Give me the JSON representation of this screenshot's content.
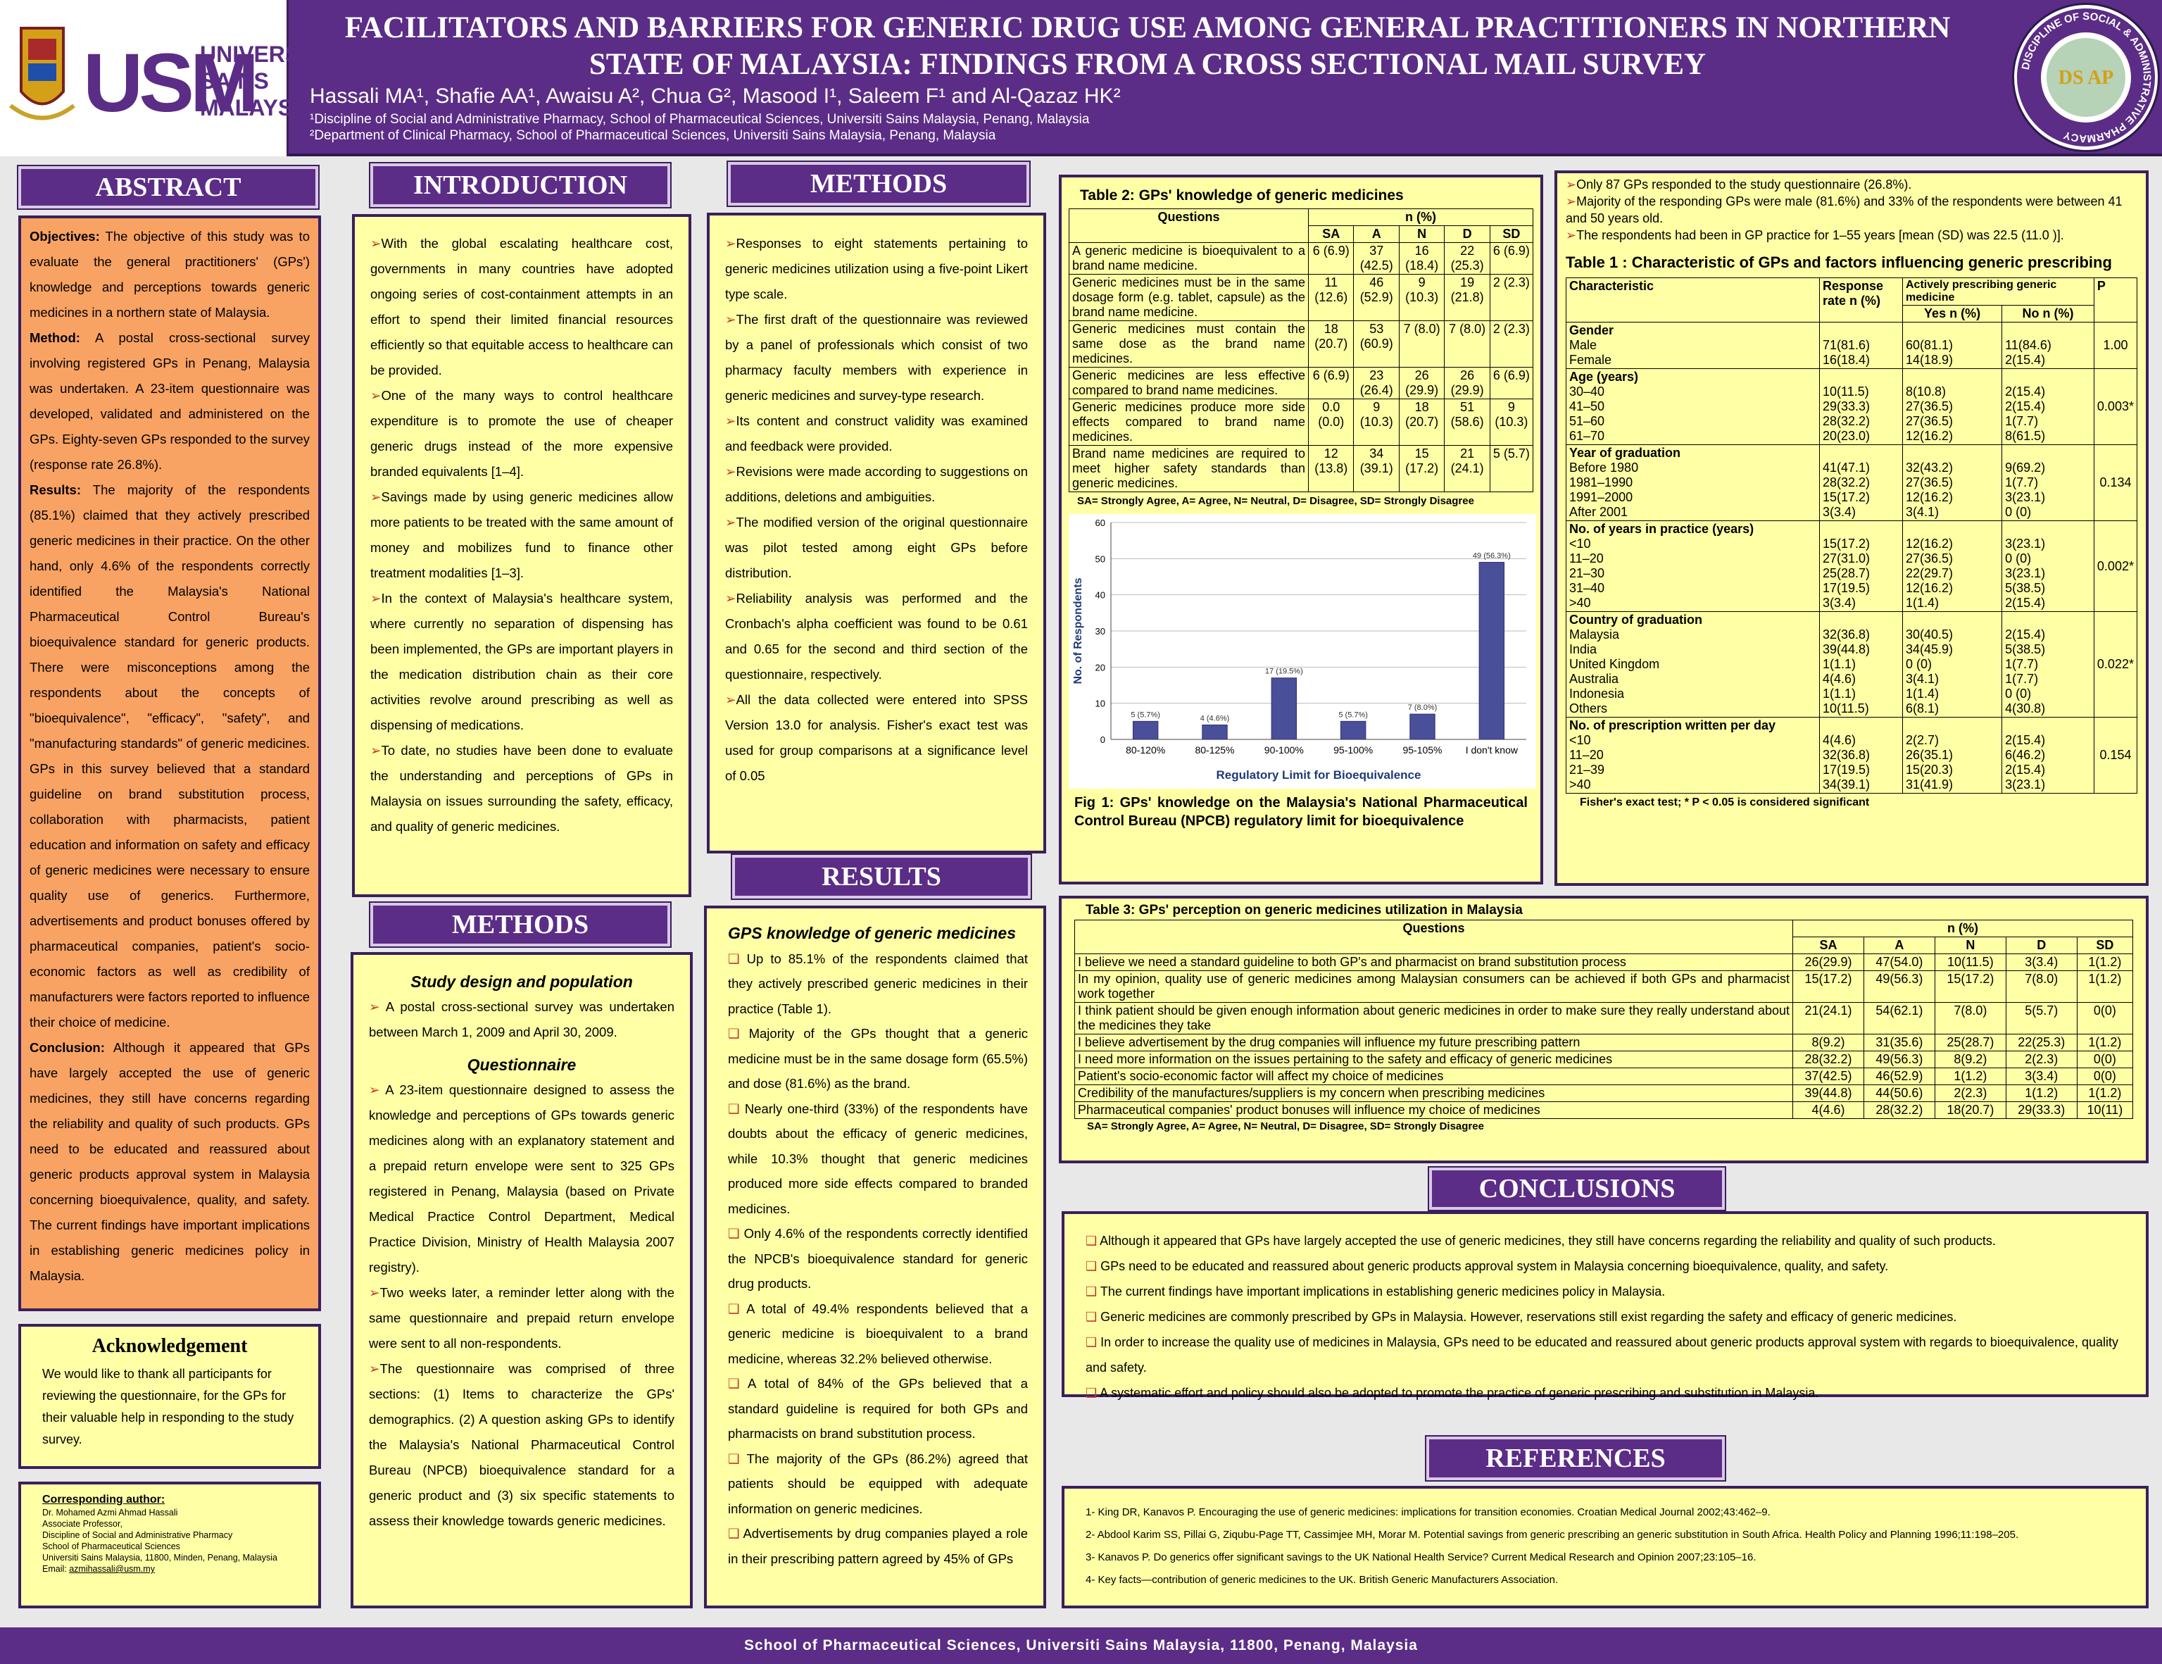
{
  "header": {
    "title": "FACILITATORS AND BARRIERS FOR GENERIC DRUG USE AMONG GENERAL PRACTITIONERS IN NORTHERN STATE OF MALAYSIA: FINDINGS FROM A CROSS SECTIONAL MAIL SURVEY",
    "authors": "Hassali MA¹, Shafie AA¹, Awaisu A², Chua G², Masood I¹, Saleem F¹ and Al-Qazaz HK²",
    "affil1": "¹Discipline of Social and Administrative Pharmacy, School of Pharmaceutical Sciences, Universiti Sains Malaysia, Penang, Malaysia",
    "affil2": "²Department of Clinical Pharmacy, School of Pharmaceutical Sciences, Universiti Sains Malaysia, Penang, Malaysia",
    "logo_text": "USM",
    "logo_name_1": "UNIVERSITI",
    "logo_name_2": "SAINS",
    "logo_name_3": "MALAYSIA",
    "seal_text": "DISCIPLINE OF SOCIAL & ADMINISTRATIVE PHARMACY",
    "seal_letters": "DS AP"
  },
  "abstract": {
    "heading": "ABSTRACT",
    "objectives_label": "Objectives:",
    "objectives": " The objective of this study was to evaluate the general practitioners' (GPs') knowledge and perceptions towards generic medicines in a northern state of Malaysia.",
    "method_label": "Method:",
    "method": " A postal cross-sectional survey involving registered GPs in Penang, Malaysia was undertaken. A 23-item questionnaire was developed, validated and administered on the GPs. Eighty-seven GPs responded to the survey (response rate 26.8%).",
    "results_label": "Results:",
    "results": " The majority of the respondents (85.1%) claimed that they actively prescribed generic medicines in their practice. On the other hand, only 4.6% of the respondents correctly identified the Malaysia's National Pharmaceutical Control Bureau's bioequivalence standard for generic products. There were misconceptions among the respondents about the concepts of \"bioequivalence\", \"efficacy\", \"safety\", and \"manufacturing standards\" of generic medicines. GPs in this survey believed that a standard guideline on brand substitution process, collaboration with pharmacists, patient education and information on safety and efficacy of generic medicines were necessary to ensure quality use of generics. Furthermore, advertisements and product bonuses offered by pharmaceutical companies, patient's socio-economic factors as well as credibility of manufacturers were factors reported to influence their choice of medicine.",
    "conclusion_label": "Conclusion:",
    "conclusion": " Although it appeared that GPs have largely accepted the use of generic medicines, they still have concerns regarding the reliability and quality of such products. GPs need to be educated and reassured about generic products approval system in Malaysia concerning bioequivalence, quality, and safety. The current findings have important implications in establishing generic medicines policy in Malaysia."
  },
  "acknowledgement": {
    "heading": "Acknowledgement",
    "text": "We would like to thank all participants for reviewing the questionnaire, for the GPs for their valuable help in responding to the study survey."
  },
  "corresponding": {
    "heading": "Corresponding author:",
    "lines": [
      "Dr. Mohamed Azmi Ahmad Hassali",
      "Associate Professor,",
      "Discipline of Social and Administrative Pharmacy",
      "School of Pharmaceutical Sciences",
      "Universiti Sains Malaysia, 11800, Minden, Penang, Malaysia"
    ],
    "email_label": "Email: ",
    "email": "azmihassali@usm.my"
  },
  "introduction": {
    "heading": "INTRODUCTION",
    "items": [
      "With the global escalating healthcare cost, governments in many countries have adopted ongoing series of cost-containment attempts in an effort to spend their limited financial resources efficiently so that equitable access to healthcare can be provided.",
      "One of the many ways to control healthcare expenditure is to promote the use of cheaper generic drugs instead of the more expensive branded equivalents [1–4].",
      "Savings made by using generic medicines allow more patients to be treated with the same amount of money and mobilizes fund to finance other treatment modalities [1–3].",
      "In the context of Malaysia's healthcare system, where currently no separation of dispensing has been implemented, the GPs are important players in the medication distribution chain as their core activities revolve around prescribing as well as dispensing of medications.",
      "To date, no studies have been done to evaluate the understanding and perceptions of GPs in Malaysia on issues surrounding the safety, efficacy, and quality of generic medicines."
    ]
  },
  "methods1": {
    "heading": "METHODS",
    "sub1": "Study design and population",
    "item1": "A postal cross-sectional survey was undertaken between March 1, 2009 and April 30, 2009.",
    "sub2": "Questionnaire",
    "items2": [
      "A 23-item questionnaire designed to assess the knowledge and perceptions of GPs towards generic medicines along with an explanatory statement and a prepaid return envelope were sent to 325 GPs registered in Penang, Malaysia (based on Private Medical Practice Control Department, Medical Practice Division, Ministry of Health Malaysia 2007 registry).",
      "Two weeks later, a reminder letter along with the same questionnaire and prepaid return envelope were sent to all non-respondents.",
      "The questionnaire was comprised of three sections: (1) Items to characterize the GPs' demographics. (2) A question asking GPs to identify the Malaysia's National Pharmaceutical Control Bureau (NPCB) bioequivalence standard for a generic product and (3) six specific statements to assess their knowledge towards generic medicines."
    ]
  },
  "methods2": {
    "heading": "METHODS",
    "items": [
      "Responses to eight statements pertaining to generic medicines utilization using a five-point Likert type scale.",
      "The first draft of the questionnaire was reviewed by a panel of professionals which consist of two pharmacy faculty members with experience in generic medicines and survey-type research.",
      "Its content and construct validity was examined and feedback were provided.",
      "Revisions were made according to suggestions on additions, deletions and ambiguities.",
      "The modified version of the original questionnaire was pilot tested among eight GPs before distribution.",
      "Reliability analysis was performed and the Cronbach's alpha coefficient was found to be 0.61 and 0.65 for the second and third section of the questionnaire, respectively.",
      "All the data collected were entered into SPSS Version 13.0 for analysis. Fisher's exact test was used for group comparisons at a significance level of 0.05"
    ]
  },
  "results": {
    "heading": "RESULTS",
    "sub": "GPS knowledge of generic medicines",
    "items": [
      "Up to 85.1% of the respondents claimed that they actively prescribed generic medicines in their practice (Table 1).",
      "Majority of the GPs thought that a generic medicine must be in the same dosage form (65.5%) and dose (81.6%) as the brand.",
      "Nearly one-third (33%) of the respondents have doubts about the efficacy of generic medicines, while 10.3% thought that generic medicines produced more side effects compared to branded medicines.",
      "Only 4.6% of the respondents correctly identified the NPCB's bioequivalence standard for generic drug products.",
      " A total of 49.4% respondents believed that a generic medicine is bioequivalent to a brand medicine, whereas 32.2% believed otherwise.",
      "A total of 84% of the GPs believed that a standard guideline is required for both GPs and pharmacists on brand substitution process.",
      "The majority of the GPs (86.2%) agreed that patients should be equipped with adequate information on generic medicines.",
      "Advertisements by drug companies played a role in their prescribing pattern agreed by 45% of GPs"
    ]
  },
  "table2": {
    "title": "Table 2: GPs' knowledge of generic medicines",
    "h_questions": "Questions",
    "h_n": "n (%)",
    "cols": [
      "SA",
      "A",
      "N",
      "D",
      "SD"
    ],
    "rows": [
      {
        "q": "A generic medicine is bioequivalent to a brand name medicine.",
        "v": [
          "6 (6.9)",
          "37 (42.5)",
          "16 (18.4)",
          "22 (25.3)",
          "6 (6.9)"
        ]
      },
      {
        "q": "Generic medicines must be in the same dosage form (e.g. tablet, capsule) as the brand name medicine.",
        "v": [
          "11 (12.6)",
          "46 (52.9)",
          "9 (10.3)",
          "19 (21.8)",
          "2 (2.3)"
        ]
      },
      {
        "q": "Generic medicines must contain the same dose as the brand name medicines.",
        "v": [
          "18 (20.7)",
          "53 (60.9)",
          "7 (8.0)",
          "7 (8.0)",
          "2 (2.3)"
        ]
      },
      {
        "q": "Generic medicines are less effective compared to brand name medicines.",
        "v": [
          "6 (6.9)",
          "23 (26.4)",
          "26 (29.9)",
          "26 (29.9)",
          "6 (6.9)"
        ]
      },
      {
        "q": "Generic medicines produce more side effects compared to brand name medicines.",
        "v": [
          "0.0 (0.0)",
          "9 (10.3)",
          "18 (20.7)",
          "51 (58.6)",
          "9 (10.3)"
        ]
      },
      {
        "q": "Brand name medicines are required to meet higher safety standards than generic medicines.",
        "v": [
          "12 (13.8)",
          "34 (39.1)",
          "15 (17.2)",
          "21 (24.1)",
          "5 (5.7)"
        ]
      }
    ],
    "note": "SA= Strongly Agree, A= Agree, N= Neutral, D= Disagree, SD= Strongly Disagree"
  },
  "chart_data": {
    "type": "bar",
    "categories": [
      "80-120%",
      "80-125%",
      "90-100%",
      "95-100%",
      "95-105%",
      "I don't know"
    ],
    "values": [
      5,
      4,
      17,
      5,
      7,
      49
    ],
    "data_labels": [
      "5 (5.7%)",
      "4 (4.6%)",
      "17 (19.5%)",
      "5 (5.7%)",
      "7 (8.0%)",
      "49 (56.3%)"
    ],
    "xlabel": "Regulatory Limit for Bioequivalence",
    "ylabel": "No. of Respondents",
    "ylim": [
      0,
      60
    ],
    "yticks": [
      "0",
      "10",
      "20",
      "30",
      "40",
      "50",
      "60"
    ],
    "grid": true,
    "color": "#4a4f9a",
    "caption": "Fig 1: GPs' knowledge on the Malaysia's National Pharmaceutical Control Bureau (NPCB) regulatory limit for bioequivalence"
  },
  "topright": {
    "items": [
      "Only 87 GPs responded to the study questionnaire (26.8%).",
      "Majority of the responding GPs were male (81.6%) and 33% of the respondents were between 41 and 50 years old.",
      "The respondents had been in GP practice for 1–55 years [mean (SD)  was 22.5 (11.0 )]."
    ]
  },
  "table1": {
    "title": "Table 1 : Characteristic of GPs and factors influencing generic prescribing",
    "h_char": "Characteristic",
    "h_resp": "Response rate n (%)",
    "h_active": "Actively prescribing generic medicine",
    "h_yes": "Yes n (%)",
    "h_no": "No n (%)",
    "h_p": "P",
    "groups": [
      {
        "name": "Gender",
        "labels": [
          "Male",
          "Female"
        ],
        "resp": [
          "71(81.6)",
          "16(18.4)"
        ],
        "yes": [
          "60(81.1)",
          "14(18.9)"
        ],
        "no": [
          "11(84.6)",
          "2(15.4)"
        ],
        "p": "1.00"
      },
      {
        "name": "Age (years)",
        "labels": [
          "30–40",
          "41–50",
          "51–60",
          "61–70"
        ],
        "resp": [
          "10(11.5)",
          "29(33.3)",
          "28(32.2)",
          "20(23.0)"
        ],
        "yes": [
          "8(10.8)",
          "27(36.5)",
          "27(36.5)",
          "12(16.2)"
        ],
        "no": [
          "2(15.4)",
          "2(15.4)",
          "1(7.7)",
          "8(61.5)"
        ],
        "p": "0.003*"
      },
      {
        "name": "Year of graduation",
        "labels": [
          "Before 1980",
          "1981–1990",
          "1991–2000",
          "After 2001"
        ],
        "resp": [
          "41(47.1)",
          "28(32.2)",
          "15(17.2)",
          "3(3.4)"
        ],
        "yes": [
          "32(43.2)",
          "27(36.5)",
          "12(16.2)",
          "3(4.1)"
        ],
        "no": [
          "9(69.2)",
          "1(7.7)",
          "3(23.1)",
          "0 (0)"
        ],
        "p": "0.134"
      },
      {
        "name": "No. of years in practice (years)",
        "labels": [
          "<10",
          "11–20",
          "21–30",
          "31–40",
          ">40"
        ],
        "resp": [
          "15(17.2)",
          "27(31.0)",
          "25(28.7)",
          "17(19.5)",
          "3(3.4)"
        ],
        "yes": [
          "12(16.2)",
          "27(36.5)",
          "22(29.7)",
          "12(16.2)",
          "1(1.4)"
        ],
        "no": [
          "3(23.1)",
          "0 (0)",
          "3(23.1)",
          "5(38.5)",
          "2(15.4)"
        ],
        "p": "0.002*"
      },
      {
        "name": "Country of graduation",
        "labels": [
          "Malaysia",
          "India",
          "United Kingdom",
          "Australia",
          "Indonesia",
          "Others"
        ],
        "resp": [
          "32(36.8)",
          "39(44.8)",
          "1(1.1)",
          "4(4.6)",
          "1(1.1)",
          "10(11.5)"
        ],
        "yes": [
          "30(40.5)",
          "34(45.9)",
          "0 (0)",
          "3(4.1)",
          "1(1.4)",
          "6(8.1)"
        ],
        "no": [
          "2(15.4)",
          "5(38.5)",
          "1(7.7)",
          "1(7.7)",
          "0 (0)",
          "4(30.8)"
        ],
        "p": "0.022*"
      },
      {
        "name": "No. of prescription written per day",
        "labels": [
          "<10",
          "11–20",
          "21–39",
          ">40"
        ],
        "resp": [
          "4(4.6)",
          "32(36.8)",
          "17(19.5)",
          "34(39.1)"
        ],
        "yes": [
          "2(2.7)",
          "26(35.1)",
          "15(20.3)",
          "31(41.9)"
        ],
        "no": [
          "2(15.4)",
          "6(46.2)",
          "2(15.4)",
          "3(23.1)"
        ],
        "p": "0.154"
      }
    ],
    "note": "Fisher's exact test; * P < 0.05 is considered significant"
  },
  "table3": {
    "title": "Table 3: GPs' perception on generic medicines utilization in Malaysia",
    "h_questions": "Questions",
    "h_n": "n (%)",
    "cols": [
      "SA",
      "A",
      "N",
      "D",
      "SD"
    ],
    "rows": [
      {
        "q": "I believe we need a standard guideline to both GP's and pharmacist on brand substitution process",
        "v": [
          "26(29.9)",
          "47(54.0)",
          "10(11.5)",
          "3(3.4)",
          "1(1.2)"
        ]
      },
      {
        "q": "In my opinion, quality use of generic medicines among Malaysian consumers can be achieved if both GPs and pharmacist work together",
        "v": [
          "15(17.2)",
          "49(56.3)",
          "15(17.2)",
          "7(8.0)",
          "1(1.2)"
        ]
      },
      {
        "q": "I think patient should be given enough information about generic medicines in order to make sure they really understand about the medicines they take",
        "v": [
          "21(24.1)",
          "54(62.1)",
          "7(8.0)",
          "5(5.7)",
          "0(0)"
        ]
      },
      {
        "q": "I believe advertisement by the drug companies will influence my future prescribing pattern",
        "v": [
          "8(9.2)",
          "31(35.6)",
          "25(28.7)",
          "22(25.3)",
          "1(1.2)"
        ]
      },
      {
        "q": "I need more information on the issues pertaining to the safety and efficacy of generic medicines",
        "v": [
          "28(32.2)",
          "49(56.3)",
          "8(9.2)",
          "2(2.3)",
          "0(0)"
        ]
      },
      {
        "q": "Patient's socio-economic factor will affect my choice of medicines",
        "v": [
          "37(42.5)",
          "46(52.9)",
          "1(1.2)",
          "3(3.4)",
          "0(0)"
        ]
      },
      {
        "q": "Credibility of the manufactures/suppliers is my concern when prescribing medicines",
        "v": [
          "39(44.8)",
          "44(50.6)",
          "2(2.3)",
          "1(1.2)",
          "1(1.2)"
        ]
      },
      {
        "q": "Pharmaceutical companies' product bonuses will influence my choice of medicines",
        "v": [
          "4(4.6)",
          "28(32.2)",
          "18(20.7)",
          "29(33.3)",
          "10(11)"
        ]
      }
    ],
    "note": "SA= Strongly Agree, A= Agree, N= Neutral, D= Disagree, SD= Strongly Disagree"
  },
  "conclusions": {
    "heading": "CONCLUSIONS",
    "items": [
      "Although it appeared that GPs have largely accepted the use of generic medicines, they still have concerns regarding the reliability and quality of such products.",
      "GPs need to be educated and reassured about generic products approval system in Malaysia concerning bioequivalence, quality, and safety.",
      "The current findings have important implications in establishing generic medicines policy in Malaysia.",
      "Generic medicines are commonly prescribed by GPs in Malaysia. However, reservations still exist regarding the safety and efficacy of generic medicines.",
      "In order to increase the quality use of medicines in Malaysia, GPs need to be educated and reassured about generic products approval system with regards to bioequivalence, quality and safety.",
      "A systematic effort and policy should also be adopted to promote the practice of generic prescribing and substitution in Malaysia."
    ]
  },
  "references": {
    "heading": "REFERENCES",
    "items": [
      "1- King DR, Kanavos P. Encouraging the use of generic medicines: implications for transition economies. Croatian Medical Journal 2002;43:462–9.",
      "2- Abdool Karim SS, Pillai G, Ziqubu-Page TT, Cassimjee MH, Morar M. Potential savings from generic prescribing an generic substitution in South Africa. Health Policy and Planning 1996;11:198–205.",
      "3- Kanavos P. Do generics offer significant savings to the UK National Health Service? Current Medical Research and Opinion 2007;23:105–16.",
      "4- Key facts—contribution of generic medicines to the UK. British Generic Manufacturers Association."
    ]
  },
  "footer": {
    "text": "School of Pharmaceutical Sciences, Universiti Sains Malaysia, 11800, Penang, Malaysia"
  },
  "colors": {
    "purple": "#5b2d86",
    "panel": "#ffffa6",
    "abstract_bg": "#f8a263",
    "bar": "#4a4f9a",
    "bullet": "#c0392b"
  }
}
